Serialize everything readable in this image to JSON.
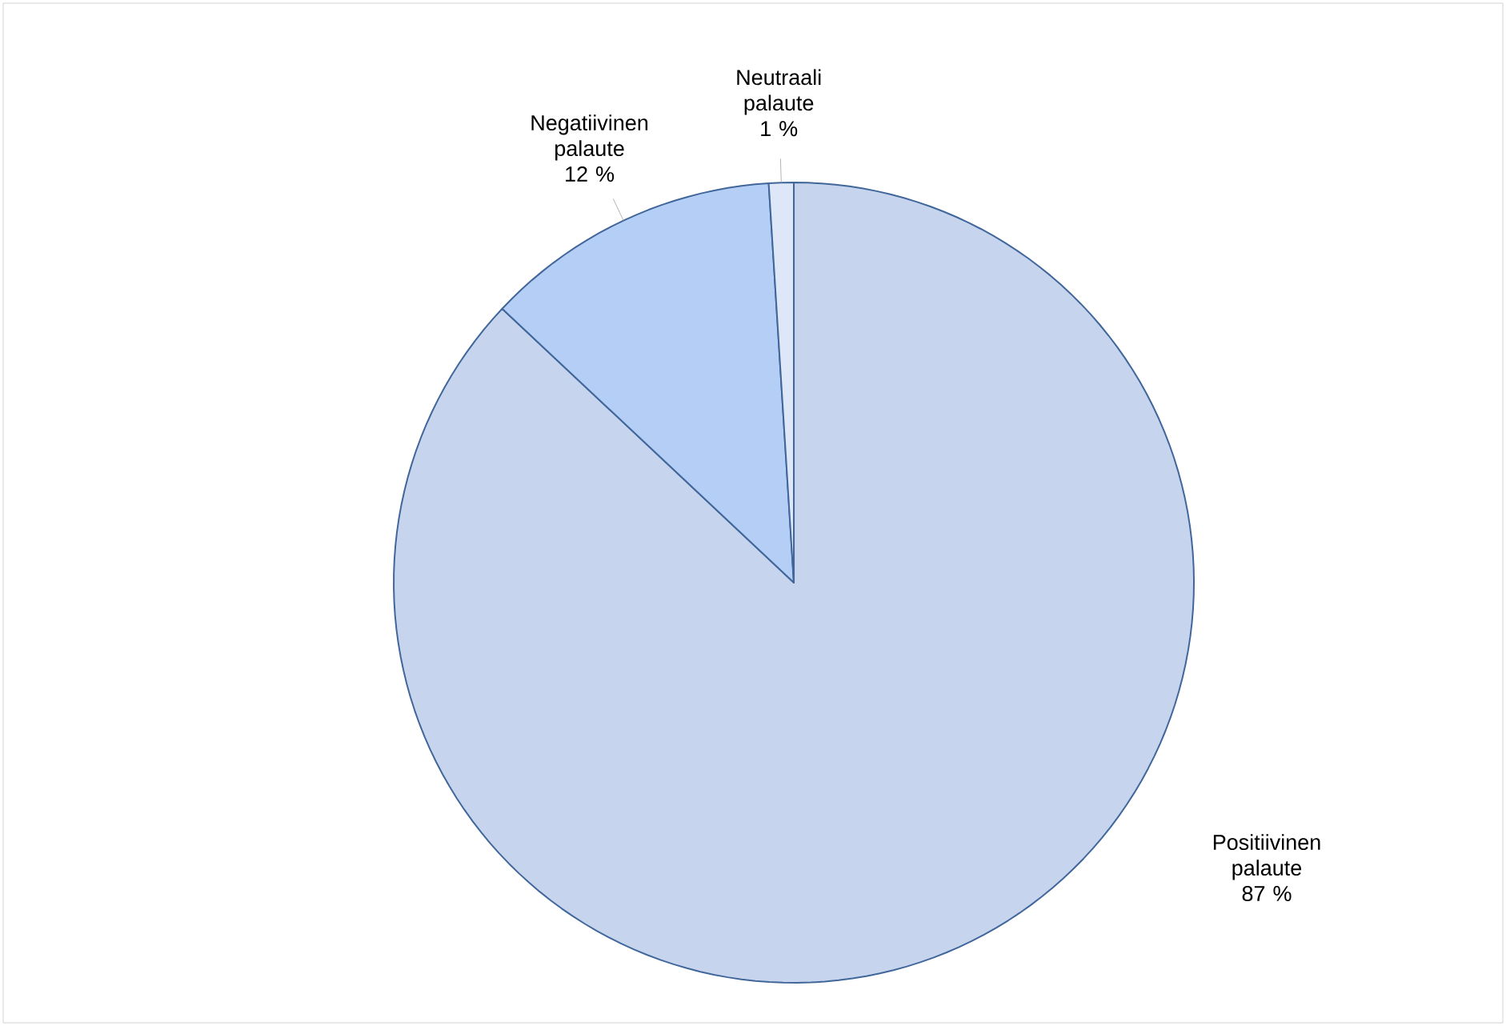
{
  "chart_data": {
    "type": "pie",
    "categories": [
      "Positiivinen palaute",
      "Negatiivinen palaute",
      "Neutraali palaute"
    ],
    "values": [
      87,
      12,
      1
    ],
    "value_labels": [
      "87 %",
      "12 %",
      "1 %"
    ],
    "colors": [
      "#c6d4ee",
      "#b5cef6",
      "#dde7f8"
    ]
  }
}
